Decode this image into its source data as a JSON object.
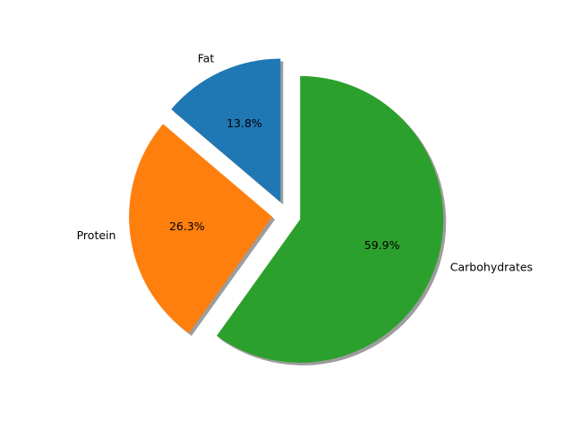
{
  "chart_data": {
    "type": "pie",
    "title": "",
    "legend": "none",
    "shadow": true,
    "start_angle_deg": 90,
    "direction": "counterclockwise",
    "slices": [
      {
        "label": "Fat",
        "value": 13.8,
        "pct_label": "13.8%",
        "color": "#1f77b4",
        "explode": 0.1
      },
      {
        "label": "Protein",
        "value": 26.3,
        "pct_label": "26.3%",
        "color": "#ff7f0e",
        "explode": 0.1
      },
      {
        "label": "Carbohydrates",
        "value": 59.9,
        "pct_label": "59.9%",
        "color": "#2ca02c",
        "explode": 0.1
      }
    ]
  }
}
